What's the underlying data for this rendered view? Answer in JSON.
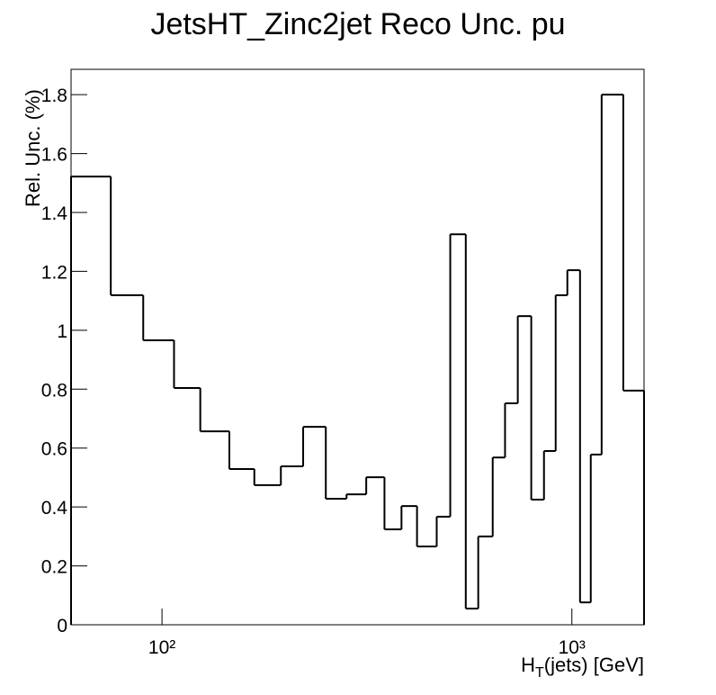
{
  "chart_data": {
    "type": "histogram",
    "title": "JetsHT_Zinc2jet Reco Unc. pu",
    "ylabel": "Rel. Unc. (%)",
    "xlabel": {
      "main": "H",
      "sub": "T",
      "rest": "(jets) [GeV]"
    },
    "xlog": true,
    "bins": [
      60,
      75,
      90,
      107,
      124,
      146,
      168,
      195,
      221,
      251,
      282,
      315,
      349,
      384,
      419,
      468,
      505,
      551,
      591,
      641,
      687,
      738,
      796,
      855,
      913,
      975,
      1047,
      1112,
      1182,
      1335,
      1500
    ],
    "values": [
      1.522,
      1.119,
      0.966,
      0.804,
      0.657,
      0.529,
      0.474,
      0.538,
      0.672,
      0.428,
      0.443,
      0.501,
      0.324,
      0.403,
      0.266,
      0.367,
      1.326,
      0.055,
      0.3,
      0.568,
      0.752,
      1.048,
      0.425,
      0.59,
      1.119,
      1.204,
      0.076,
      0.578,
      1.8,
      0.795
    ],
    "color": "#000000",
    "xlim": [
      60,
      1500
    ],
    "ylim": [
      0,
      1.886
    ],
    "xticks": [
      {
        "value": 100,
        "label": "10²"
      },
      {
        "value": 1000,
        "label": "10³"
      }
    ],
    "yticks": [
      0,
      0.2,
      0.4,
      0.6,
      0.8,
      1,
      1.2,
      1.4,
      1.6,
      1.8
    ]
  }
}
